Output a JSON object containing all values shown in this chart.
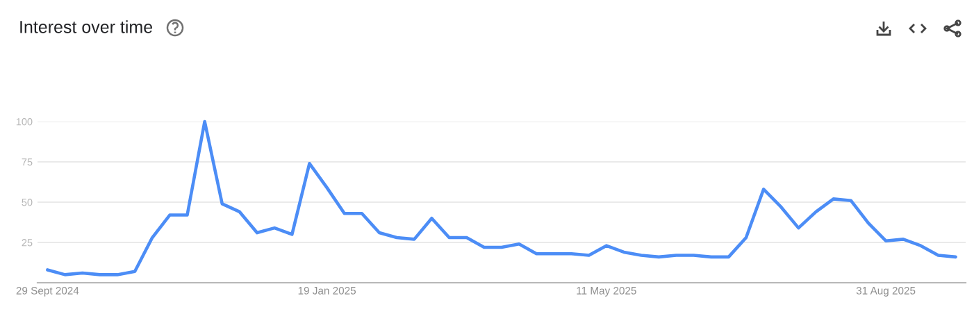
{
  "chart_data": {
    "type": "line",
    "title": "Interest over time",
    "x": [
      "2024-09-29",
      "2024-10-06",
      "2024-10-13",
      "2024-10-20",
      "2024-10-27",
      "2024-11-03",
      "2024-11-10",
      "2024-11-17",
      "2024-11-24",
      "2024-12-01",
      "2024-12-08",
      "2024-12-15",
      "2024-12-22",
      "2024-12-29",
      "2025-01-05",
      "2025-01-12",
      "2025-01-19",
      "2025-01-26",
      "2025-02-02",
      "2025-02-09",
      "2025-02-16",
      "2025-02-23",
      "2025-03-02",
      "2025-03-09",
      "2025-03-16",
      "2025-03-23",
      "2025-03-30",
      "2025-04-06",
      "2025-04-13",
      "2025-04-20",
      "2025-04-27",
      "2025-05-04",
      "2025-05-11",
      "2025-05-18",
      "2025-05-25",
      "2025-06-01",
      "2025-06-08",
      "2025-06-15",
      "2025-06-22",
      "2025-06-29",
      "2025-07-06",
      "2025-07-13",
      "2025-07-20",
      "2025-07-27",
      "2025-08-03",
      "2025-08-10",
      "2025-08-17",
      "2025-08-24",
      "2025-08-31",
      "2025-09-07",
      "2025-09-14",
      "2025-09-21",
      "2025-09-28"
    ],
    "series": [
      {
        "color": "#4c8df6",
        "values": [
          8,
          5,
          6,
          5,
          5,
          7,
          28,
          42,
          42,
          100,
          49,
          44,
          31,
          34,
          30,
          74,
          59,
          43,
          43,
          31,
          28,
          27,
          40,
          28,
          28,
          22,
          22,
          24,
          18,
          18,
          18,
          17,
          23,
          19,
          17,
          16,
          17,
          17,
          16,
          16,
          28,
          58,
          47,
          34,
          44,
          52,
          51,
          37,
          26,
          27,
          23,
          17,
          16
        ]
      }
    ],
    "xlim": [
      "2024-09-25",
      "2025-10-02"
    ],
    "xticks": [
      {
        "value": "2024-09-29",
        "label": "29 Sept 2024"
      },
      {
        "value": "2025-01-19",
        "label": "19 Jan 2025"
      },
      {
        "value": "2025-05-11",
        "label": "11 May 2025"
      },
      {
        "value": "2025-08-31",
        "label": "31 Aug 2025"
      }
    ],
    "ylim": [
      0,
      100
    ],
    "yticks": [
      25,
      50,
      75,
      100
    ],
    "grid": "y",
    "line_style": "solid"
  }
}
